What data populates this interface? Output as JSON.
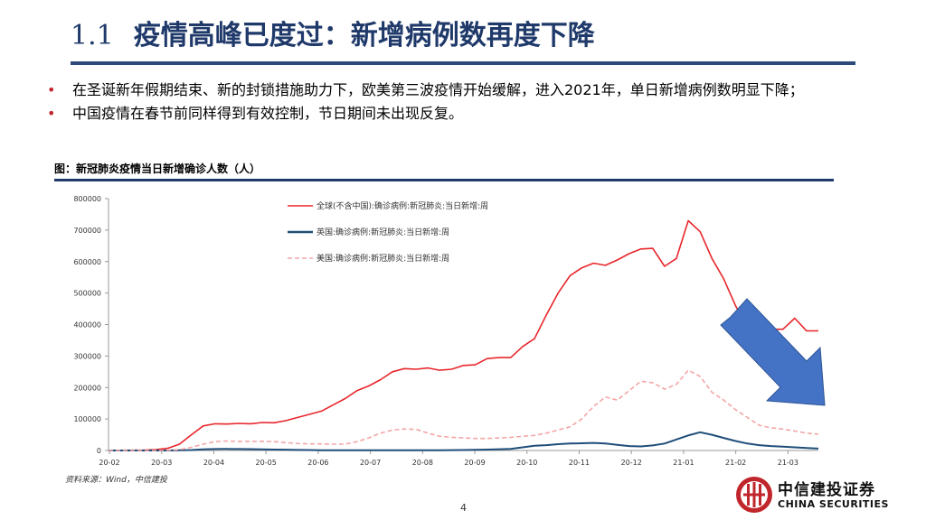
{
  "header": {
    "number": "1.1",
    "title": "疫情高峰已度过：新增病例数再度下降"
  },
  "bullets": [
    "在圣诞新年假期结束、新的封锁措施助力下，欧美第三波疫情开始缓解，进入2021年，单日新增病例数明显下降；",
    "中国疫情在春节前同样得到有效控制，节日期间未出现反复。"
  ],
  "figure": {
    "title": "图：新冠肺炎疫情当日新增确诊人数（人）",
    "source": "资料来源：Wind，中信建投"
  },
  "footer": {
    "page": "4",
    "logo_cn": "中信建投证券",
    "logo_en": "CHINA SECURITIES"
  },
  "colors": {
    "title": "#1f3a6a",
    "accent_red": "#c0262b",
    "global": "#e8262b",
    "uk": "#1f4e79",
    "us": "#f4a6a6",
    "arrow": "#4472c4"
  },
  "chart_data": {
    "type": "line",
    "ylim": [
      0,
      800000
    ],
    "yticks": [
      "0",
      "100000",
      "200000",
      "300000",
      "400000",
      "500000",
      "600000",
      "700000",
      "800000"
    ],
    "xticks": [
      "20-02",
      "20-03",
      "20-04",
      "20-05",
      "20-06",
      "20-07",
      "20-08",
      "20-09",
      "20-10",
      "20-11",
      "20-12",
      "21-01",
      "21-02",
      "21-03"
    ],
    "legend_position": "top-center",
    "x": [
      "20-02-01",
      "20-02-08",
      "20-02-15",
      "20-02-22",
      "20-02-29",
      "20-03-07",
      "20-03-14",
      "20-03-21",
      "20-03-28",
      "20-04-04",
      "20-04-11",
      "20-04-18",
      "20-04-25",
      "20-05-02",
      "20-05-09",
      "20-05-16",
      "20-05-23",
      "20-05-30",
      "20-06-06",
      "20-06-13",
      "20-06-20",
      "20-06-27",
      "20-07-04",
      "20-07-11",
      "20-07-18",
      "20-07-25",
      "20-08-01",
      "20-08-08",
      "20-08-15",
      "20-08-22",
      "20-08-29",
      "20-09-05",
      "20-09-12",
      "20-09-19",
      "20-09-26",
      "20-10-03",
      "20-10-10",
      "20-10-17",
      "20-10-24",
      "20-10-31",
      "20-11-07",
      "20-11-14",
      "20-11-21",
      "20-11-28",
      "20-12-05",
      "20-12-12",
      "20-12-19",
      "20-12-26",
      "21-01-02",
      "21-01-09",
      "21-01-16",
      "21-01-23",
      "21-01-30",
      "21-02-06",
      "21-02-13",
      "21-02-20",
      "21-02-27",
      "21-03-06",
      "21-03-13",
      "21-03-20",
      "21-03-27"
    ],
    "series": [
      {
        "name": "全球(不含中国):确诊病例:新冠肺炎:当日新增:周",
        "color": "#e8262b",
        "style": "solid",
        "values": [
          200,
          500,
          1000,
          1500,
          3000,
          7000,
          20000,
          50000,
          78000,
          85000,
          84000,
          86000,
          85000,
          89000,
          88000,
          95000,
          105000,
          115000,
          125000,
          145000,
          165000,
          190000,
          205000,
          225000,
          250000,
          260000,
          258000,
          262000,
          255000,
          258000,
          270000,
          272000,
          292000,
          295000,
          295000,
          330000,
          355000,
          430000,
          500000,
          555000,
          580000,
          595000,
          588000,
          605000,
          625000,
          640000,
          642000,
          585000,
          610000,
          730000,
          695000,
          610000,
          545000,
          460000,
          390000,
          360000,
          385000,
          385000,
          420000,
          380000,
          380000
        ]
      },
      {
        "name": "英国:确诊病例:新冠肺炎:当日新增:周",
        "color": "#1f4e79",
        "style": "solid",
        "values": [
          0,
          0,
          0,
          0,
          0,
          100,
          500,
          1500,
          3500,
          4500,
          4800,
          4600,
          4200,
          3500,
          3000,
          2500,
          1800,
          1300,
          1000,
          800,
          600,
          500,
          500,
          500,
          600,
          700,
          800,
          900,
          1000,
          1100,
          1300,
          2000,
          3000,
          4000,
          5000,
          10000,
          15000,
          17000,
          20000,
          22000,
          23000,
          24000,
          22000,
          18000,
          14000,
          13000,
          16000,
          22000,
          35000,
          48000,
          58000,
          50000,
          40000,
          30000,
          22000,
          17000,
          14000,
          12000,
          10000,
          8000,
          6000
        ]
      },
      {
        "name": "美国:确诊病例:新冠肺炎:当日新增:周",
        "color": "#f4a6a6",
        "style": "dashed",
        "values": [
          0,
          0,
          0,
          0,
          100,
          500,
          3000,
          10000,
          20000,
          28000,
          30000,
          29000,
          29000,
          29000,
          28000,
          25000,
          22000,
          21000,
          21000,
          20000,
          20000,
          28000,
          40000,
          55000,
          65000,
          68000,
          67000,
          55000,
          45000,
          42000,
          40000,
          38000,
          38000,
          40000,
          42000,
          45000,
          48000,
          55000,
          65000,
          75000,
          100000,
          140000,
          170000,
          160000,
          190000,
          220000,
          215000,
          195000,
          210000,
          255000,
          235000,
          185000,
          160000,
          130000,
          105000,
          80000,
          72000,
          68000,
          62000,
          55000,
          52000
        ]
      }
    ],
    "annotation": "downward-arrow"
  }
}
